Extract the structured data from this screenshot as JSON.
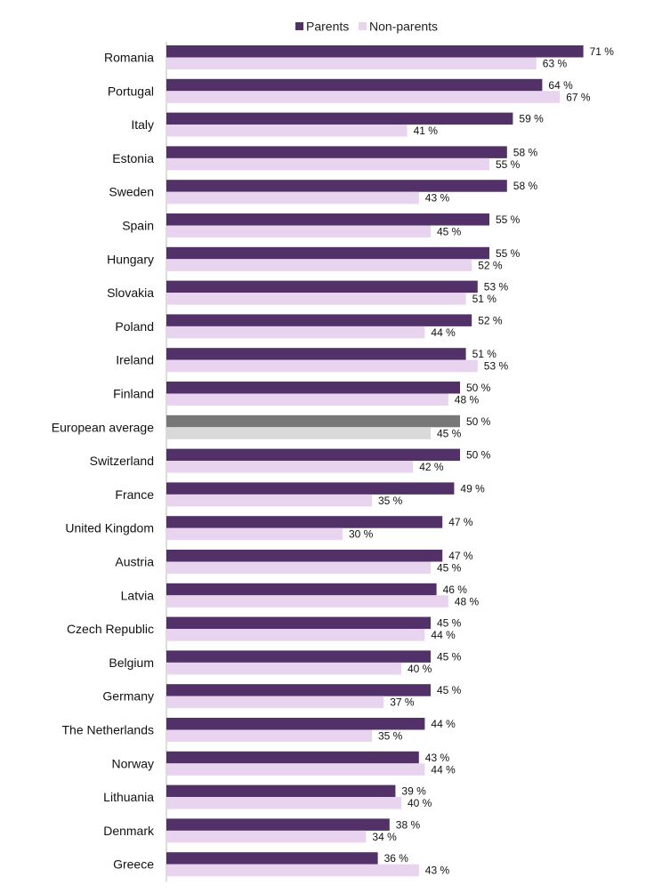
{
  "chart_data": {
    "type": "bar",
    "orientation": "horizontal",
    "title": "",
    "xlabel": "",
    "ylabel": "",
    "xlim": [
      0,
      100
    ],
    "grid": false,
    "legend_position": "top",
    "value_suffix": " %",
    "categories": [
      "Romania",
      "Portugal",
      "Italy",
      "Estonia",
      "Sweden",
      "Spain",
      "Hungary",
      "Slovakia",
      "Poland",
      "Ireland",
      "Finland",
      "European average",
      "Switzerland",
      "France",
      "United Kingdom",
      "Austria",
      "Latvia",
      "Czech Republic",
      "Belgium",
      "Germany",
      "The Netherlands",
      "Norway",
      "Lithuania",
      "Denmark",
      "Greece"
    ],
    "highlight_category": "European average",
    "series": [
      {
        "name": "Parents",
        "color": "#523068",
        "highlight_color": "#777777",
        "values": [
          71,
          64,
          59,
          58,
          58,
          55,
          55,
          53,
          52,
          51,
          50,
          50,
          50,
          49,
          47,
          47,
          46,
          45,
          45,
          45,
          44,
          43,
          39,
          38,
          36
        ]
      },
      {
        "name": "Non-parents",
        "color": "#e8d4ee",
        "highlight_color": "#d9d9d9",
        "values": [
          63,
          67,
          41,
          55,
          43,
          45,
          52,
          51,
          44,
          53,
          48,
          45,
          42,
          35,
          30,
          45,
          48,
          44,
          40,
          37,
          35,
          44,
          40,
          34,
          43
        ]
      }
    ]
  }
}
